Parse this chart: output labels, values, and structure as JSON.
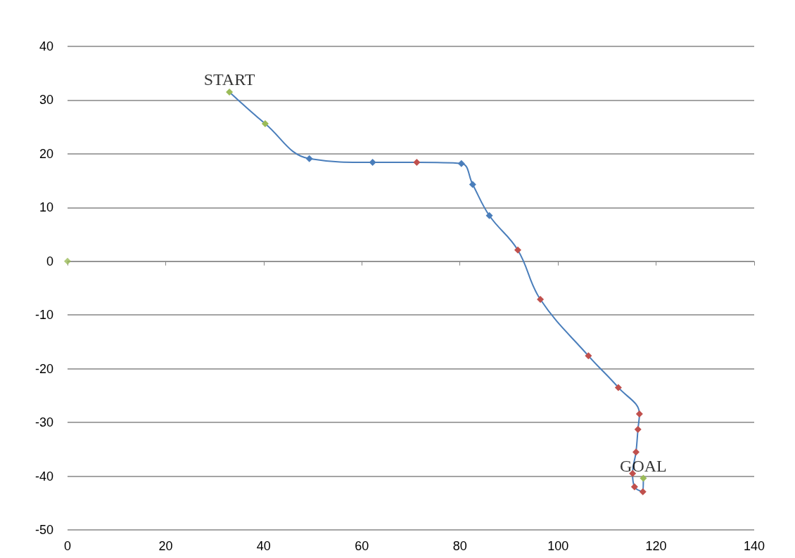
{
  "chart_data": {
    "type": "line",
    "xlim": [
      0,
      140
    ],
    "xticks": [
      0,
      20,
      40,
      60,
      80,
      100,
      120,
      140
    ],
    "ylim": [
      -50,
      40
    ],
    "yticks": [
      -50,
      -40,
      -30,
      -20,
      -10,
      0,
      10,
      20,
      30,
      40
    ],
    "grid": "y",
    "marker": "diamond",
    "line_style": "solid",
    "annotations": [
      {
        "text": "START",
        "x": 33,
        "y": 31.5
      },
      {
        "text": "GOAL",
        "x": 117.4,
        "y": -40.4
      }
    ],
    "series": [
      {
        "color": "#4a7ebb",
        "x": [
          33,
          40.3,
          49.3,
          62.2,
          71.2,
          80.3,
          82.6,
          86,
          91.8,
          96.4,
          106.2,
          112.3,
          116.6,
          116.3,
          115.9,
          115.2,
          115.6,
          117.3,
          117.4
        ],
        "values": [
          31.5,
          25.6,
          19.1,
          18.4,
          18.4,
          18.2,
          14.3,
          8.5,
          2.1,
          -7.1,
          -17.6,
          -23.5,
          -28.4,
          -31.3,
          -35.5,
          -39.5,
          -42,
          -42.9,
          -40.4
        ],
        "colors": [
          "#9bbb59",
          "#9bbb59",
          "#4a7ebb",
          "#4a7ebb",
          "#c0504d",
          "#4a7ebb",
          "#4a7ebb",
          "#4a7ebb",
          "#c0504d",
          "#c0504d",
          "#c0504d",
          "#c0504d",
          "#c0504d",
          "#c0504d",
          "#c0504d",
          "#c0504d",
          "#c0504d",
          "#c0504d",
          "#9bbb59"
        ]
      },
      {
        "type": "scatter",
        "color": "#9bbb59",
        "x": [
          0
        ],
        "values": [
          0
        ]
      }
    ]
  }
}
